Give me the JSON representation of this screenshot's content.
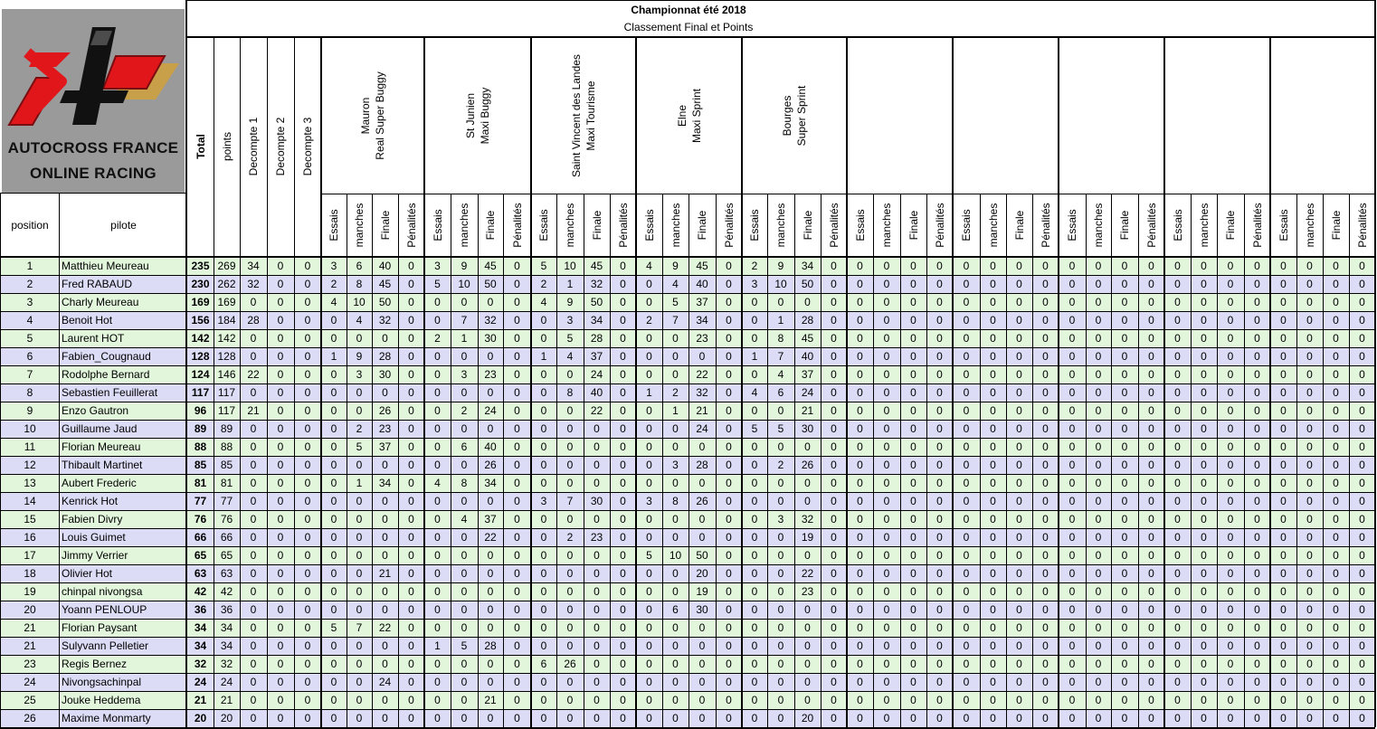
{
  "title": "Championnat été 2018",
  "subtitle": "Classement Final et Points",
  "logo": {
    "line1": "AUTOCROSS FRANCE",
    "line2": "ONLINE RACING",
    "colors": {
      "red": "#e0161b",
      "gold": "#c9a04a",
      "black": "#111111"
    }
  },
  "headers": {
    "position": "position",
    "pilote": "pilote",
    "total": "Total",
    "points": "points",
    "decompte1": "Decompte 1",
    "decompte2": "Decompte 2",
    "decompte3": "Decompte 3",
    "sub": [
      "Essais",
      "manches",
      "Finale",
      "Pénalités"
    ]
  },
  "events": [
    {
      "line1": "Mauron",
      "line2": "Real Super Buggy"
    },
    {
      "line1": "St Junien",
      "line2": "Maxi Buggy"
    },
    {
      "line1": "Saint Vincent des Landes",
      "line2": "Maxi Tourisme"
    },
    {
      "line1": "Elne",
      "line2": "Maxi Sprint"
    },
    {
      "line1": "Bourges",
      "line2": "Super Sprint"
    },
    {
      "line1": "",
      "line2": ""
    },
    {
      "line1": "",
      "line2": ""
    },
    {
      "line1": "",
      "line2": ""
    },
    {
      "line1": "",
      "line2": ""
    },
    {
      "line1": "",
      "line2": ""
    }
  ],
  "colors": {
    "row_green": "#e2f6dc",
    "row_lavender": "#dcdcf7",
    "grid": "#000000"
  },
  "rows": [
    {
      "position": "1",
      "pilote": "Matthieu Meureau",
      "total": "235",
      "points": "269",
      "d1": "34",
      "d2": "0",
      "d3": "0",
      "ev": [
        [
          3,
          6,
          40,
          0
        ],
        [
          3,
          9,
          45,
          0
        ],
        [
          5,
          10,
          45,
          0
        ],
        [
          4,
          9,
          45,
          0
        ],
        [
          2,
          9,
          34,
          0
        ]
      ]
    },
    {
      "position": "2",
      "pilote": "Fred RABAUD",
      "total": "230",
      "points": "262",
      "d1": "32",
      "d2": "0",
      "d3": "0",
      "ev": [
        [
          2,
          8,
          45,
          0
        ],
        [
          5,
          10,
          50,
          0
        ],
        [
          2,
          1,
          32,
          0
        ],
        [
          0,
          4,
          40,
          0
        ],
        [
          3,
          10,
          50,
          0
        ]
      ]
    },
    {
      "position": "3",
      "pilote": "Charly Meureau",
      "total": "169",
      "points": "169",
      "d1": "0",
      "d2": "0",
      "d3": "0",
      "ev": [
        [
          4,
          10,
          50,
          0
        ],
        [
          0,
          0,
          0,
          0
        ],
        [
          4,
          9,
          50,
          0
        ],
        [
          0,
          5,
          37,
          0
        ],
        [
          0,
          0,
          0,
          0
        ]
      ]
    },
    {
      "position": "4",
      "pilote": "Benoit Hot",
      "total": "156",
      "points": "184",
      "d1": "28",
      "d2": "0",
      "d3": "0",
      "ev": [
        [
          0,
          4,
          32,
          0
        ],
        [
          0,
          7,
          32,
          0
        ],
        [
          0,
          3,
          34,
          0
        ],
        [
          2,
          7,
          34,
          0
        ],
        [
          0,
          1,
          28,
          0
        ]
      ]
    },
    {
      "position": "5",
      "pilote": "Laurent HOT",
      "total": "142",
      "points": "142",
      "d1": "0",
      "d2": "0",
      "d3": "0",
      "ev": [
        [
          0,
          0,
          0,
          0
        ],
        [
          2,
          1,
          30,
          0
        ],
        [
          0,
          5,
          28,
          0
        ],
        [
          0,
          0,
          23,
          0
        ],
        [
          0,
          8,
          45,
          0
        ]
      ]
    },
    {
      "position": "6",
      "pilote": "Fabien_Cougnaud",
      "total": "128",
      "points": "128",
      "d1": "0",
      "d2": "0",
      "d3": "0",
      "ev": [
        [
          1,
          9,
          28,
          0
        ],
        [
          0,
          0,
          0,
          0
        ],
        [
          1,
          4,
          37,
          0
        ],
        [
          0,
          0,
          0,
          0
        ],
        [
          1,
          7,
          40,
          0
        ]
      ]
    },
    {
      "position": "7",
      "pilote": "Rodolphe Bernard",
      "total": "124",
      "points": "146",
      "d1": "22",
      "d2": "0",
      "d3": "0",
      "ev": [
        [
          0,
          3,
          30,
          0
        ],
        [
          0,
          3,
          23,
          0
        ],
        [
          0,
          0,
          24,
          0
        ],
        [
          0,
          0,
          22,
          0
        ],
        [
          0,
          4,
          37,
          0
        ]
      ]
    },
    {
      "position": "8",
      "pilote": "Sebastien Feuillerat",
      "total": "117",
      "points": "117",
      "d1": "0",
      "d2": "0",
      "d3": "0",
      "ev": [
        [
          0,
          0,
          0,
          0
        ],
        [
          0,
          0,
          0,
          0
        ],
        [
          0,
          8,
          40,
          0
        ],
        [
          1,
          2,
          32,
          0
        ],
        [
          4,
          6,
          24,
          0
        ]
      ]
    },
    {
      "position": "9",
      "pilote": "Enzo Gautron",
      "total": "96",
      "points": "117",
      "d1": "21",
      "d2": "0",
      "d3": "0",
      "ev": [
        [
          0,
          0,
          26,
          0
        ],
        [
          0,
          2,
          24,
          0
        ],
        [
          0,
          0,
          22,
          0
        ],
        [
          0,
          1,
          21,
          0
        ],
        [
          0,
          0,
          21,
          0
        ]
      ]
    },
    {
      "position": "10",
      "pilote": "Guillaume Jaud",
      "total": "89",
      "points": "89",
      "d1": "0",
      "d2": "0",
      "d3": "0",
      "ev": [
        [
          0,
          2,
          23,
          0
        ],
        [
          0,
          0,
          0,
          0
        ],
        [
          0,
          0,
          0,
          0
        ],
        [
          0,
          0,
          24,
          0
        ],
        [
          5,
          5,
          30,
          0
        ]
      ]
    },
    {
      "position": "11",
      "pilote": "Florian Meureau",
      "total": "88",
      "points": "88",
      "d1": "0",
      "d2": "0",
      "d3": "0",
      "ev": [
        [
          0,
          5,
          37,
          0
        ],
        [
          0,
          6,
          40,
          0
        ],
        [
          0,
          0,
          0,
          0
        ],
        [
          0,
          0,
          0,
          0
        ],
        [
          0,
          0,
          0,
          0
        ]
      ]
    },
    {
      "position": "12",
      "pilote": "Thibault Martinet",
      "total": "85",
      "points": "85",
      "d1": "0",
      "d2": "0",
      "d3": "0",
      "ev": [
        [
          0,
          0,
          0,
          0
        ],
        [
          0,
          0,
          26,
          0
        ],
        [
          0,
          0,
          0,
          0
        ],
        [
          0,
          3,
          28,
          0
        ],
        [
          0,
          2,
          26,
          0
        ]
      ]
    },
    {
      "position": "13",
      "pilote": "Aubert Frederic",
      "total": "81",
      "points": "81",
      "d1": "0",
      "d2": "0",
      "d3": "0",
      "ev": [
        [
          0,
          1,
          34,
          0
        ],
        [
          4,
          8,
          34,
          0
        ],
        [
          0,
          0,
          0,
          0
        ],
        [
          0,
          0,
          0,
          0
        ],
        [
          0,
          0,
          0,
          0
        ]
      ]
    },
    {
      "position": "14",
      "pilote": "Kenrick Hot",
      "total": "77",
      "points": "77",
      "d1": "0",
      "d2": "0",
      "d3": "0",
      "ev": [
        [
          0,
          0,
          0,
          0
        ],
        [
          0,
          0,
          0,
          0
        ],
        [
          3,
          7,
          30,
          0
        ],
        [
          3,
          8,
          26,
          0
        ],
        [
          0,
          0,
          0,
          0
        ]
      ]
    },
    {
      "position": "15",
      "pilote": "Fabien Divry",
      "total": "76",
      "points": "76",
      "d1": "0",
      "d2": "0",
      "d3": "0",
      "ev": [
        [
          0,
          0,
          0,
          0
        ],
        [
          0,
          4,
          37,
          0
        ],
        [
          0,
          0,
          0,
          0
        ],
        [
          0,
          0,
          0,
          0
        ],
        [
          0,
          3,
          32,
          0
        ]
      ]
    },
    {
      "position": "16",
      "pilote": "Louis Guimet",
      "total": "66",
      "points": "66",
      "d1": "0",
      "d2": "0",
      "d3": "0",
      "ev": [
        [
          0,
          0,
          0,
          0
        ],
        [
          0,
          0,
          22,
          0
        ],
        [
          0,
          2,
          23,
          0
        ],
        [
          0,
          0,
          0,
          0
        ],
        [
          0,
          0,
          19,
          0
        ]
      ]
    },
    {
      "position": "17",
      "pilote": "Jimmy Verrier",
      "total": "65",
      "points": "65",
      "d1": "0",
      "d2": "0",
      "d3": "0",
      "ev": [
        [
          0,
          0,
          0,
          0
        ],
        [
          0,
          0,
          0,
          0
        ],
        [
          0,
          0,
          0,
          0
        ],
        [
          5,
          10,
          50,
          0
        ],
        [
          0,
          0,
          0,
          0
        ]
      ]
    },
    {
      "position": "18",
      "pilote": "Olivier Hot",
      "total": "63",
      "points": "63",
      "d1": "0",
      "d2": "0",
      "d3": "0",
      "ev": [
        [
          0,
          0,
          21,
          0
        ],
        [
          0,
          0,
          0,
          0
        ],
        [
          0,
          0,
          0,
          0
        ],
        [
          0,
          0,
          20,
          0
        ],
        [
          0,
          0,
          22,
          0
        ]
      ]
    },
    {
      "position": "19",
      "pilote": "chinpal nivongsa",
      "total": "42",
      "points": "42",
      "d1": "0",
      "d2": "0",
      "d3": "0",
      "ev": [
        [
          0,
          0,
          0,
          0
        ],
        [
          0,
          0,
          0,
          0
        ],
        [
          0,
          0,
          0,
          0
        ],
        [
          0,
          0,
          19,
          0
        ],
        [
          0,
          0,
          23,
          0
        ]
      ]
    },
    {
      "position": "20",
      "pilote": "Yoann PENLOUP",
      "total": "36",
      "points": "36",
      "d1": "0",
      "d2": "0",
      "d3": "0",
      "ev": [
        [
          0,
          0,
          0,
          0
        ],
        [
          0,
          0,
          0,
          0
        ],
        [
          0,
          0,
          0,
          0
        ],
        [
          0,
          6,
          30,
          0
        ],
        [
          0,
          0,
          0,
          0
        ]
      ]
    },
    {
      "position": "21",
      "pilote": "Florian Paysant",
      "total": "34",
      "points": "34",
      "d1": "0",
      "d2": "0",
      "d3": "0",
      "ev": [
        [
          5,
          7,
          22,
          0
        ],
        [
          0,
          0,
          0,
          0
        ],
        [
          0,
          0,
          0,
          0
        ],
        [
          0,
          0,
          0,
          0
        ],
        [
          0,
          0,
          0,
          0
        ]
      ]
    },
    {
      "position": "21",
      "pilote": "Sulyvann Pelletier",
      "total": "34",
      "points": "34",
      "d1": "0",
      "d2": "0",
      "d3": "0",
      "ev": [
        [
          0,
          0,
          0,
          0
        ],
        [
          1,
          5,
          28,
          0
        ],
        [
          0,
          0,
          0,
          0
        ],
        [
          0,
          0,
          0,
          0
        ],
        [
          0,
          0,
          0,
          0
        ]
      ]
    },
    {
      "position": "23",
      "pilote": "Regis Bernez",
      "total": "32",
      "points": "32",
      "d1": "0",
      "d2": "0",
      "d3": "0",
      "ev": [
        [
          0,
          0,
          0,
          0
        ],
        [
          0,
          0,
          0,
          0
        ],
        [
          6,
          26,
          0,
          0
        ],
        [
          0,
          0,
          0,
          0
        ],
        [
          0,
          0,
          0,
          0
        ]
      ]
    },
    {
      "position": "24",
      "pilote": "Nivongsachinpal",
      "total": "24",
      "points": "24",
      "d1": "0",
      "d2": "0",
      "d3": "0",
      "ev": [
        [
          0,
          0,
          24,
          0
        ],
        [
          0,
          0,
          0,
          0
        ],
        [
          0,
          0,
          0,
          0
        ],
        [
          0,
          0,
          0,
          0
        ],
        [
          0,
          0,
          0,
          0
        ]
      ]
    },
    {
      "position": "25",
      "pilote": "Jouke Heddema",
      "total": "21",
      "points": "21",
      "d1": "0",
      "d2": "0",
      "d3": "0",
      "ev": [
        [
          0,
          0,
          0,
          0
        ],
        [
          0,
          0,
          21,
          0
        ],
        [
          0,
          0,
          0,
          0
        ],
        [
          0,
          0,
          0,
          0
        ],
        [
          0,
          0,
          0,
          0
        ]
      ]
    },
    {
      "position": "26",
      "pilote": "Maxime Monmarty",
      "total": "20",
      "points": "20",
      "d1": "0",
      "d2": "0",
      "d3": "0",
      "ev": [
        [
          0,
          0,
          0,
          0
        ],
        [
          0,
          0,
          0,
          0
        ],
        [
          0,
          0,
          0,
          0
        ],
        [
          0,
          0,
          0,
          0
        ],
        [
          0,
          0,
          20,
          0
        ]
      ]
    }
  ]
}
